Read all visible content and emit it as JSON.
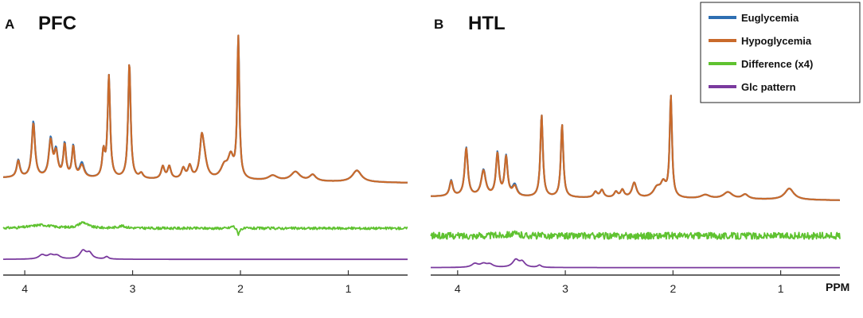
{
  "colors": {
    "euglycemia": "#2e6fb2",
    "hypoglycemia": "#c96a2b",
    "difference": "#5fc230",
    "glc": "#7a3a9e",
    "axis": "#333333"
  },
  "legend": {
    "placement": "top-right",
    "entries": [
      "Euglycemia",
      "Hypoglycemia",
      "Difference (x4)",
      "Glc pattern"
    ]
  },
  "chart_data": [
    {
      "type": "line",
      "panel_letter": "A",
      "title": "PFC",
      "xlabel": "",
      "xlim": [
        4.2,
        0.45
      ],
      "x_reversed": true,
      "xticks": [
        4,
        3,
        2,
        1
      ],
      "xtick_labels": [
        "4",
        "3",
        "2",
        "1"
      ],
      "ylim": [
        -0.5,
        4.6
      ],
      "series": [
        {
          "name": "Euglycemia",
          "peaks": [
            [
              4.06,
              0.42,
              0.018
            ],
            [
              3.92,
              1.35,
              0.018
            ],
            [
              3.76,
              0.9,
              0.02
            ],
            [
              3.71,
              0.6,
              0.02
            ],
            [
              3.63,
              0.8,
              0.015
            ],
            [
              3.55,
              0.75,
              0.015
            ],
            [
              3.47,
              0.35,
              0.025
            ],
            [
              3.27,
              0.6,
              0.015
            ],
            [
              3.22,
              2.45,
              0.014
            ],
            [
              3.03,
              2.8,
              0.014
            ],
            [
              2.92,
              0.12,
              0.02
            ],
            [
              2.72,
              0.3,
              0.018
            ],
            [
              2.66,
              0.3,
              0.018
            ],
            [
              2.53,
              0.25,
              0.02
            ],
            [
              2.47,
              0.3,
              0.02
            ],
            [
              2.36,
              0.75,
              0.02
            ],
            [
              2.34,
              0.5,
              0.03
            ],
            [
              2.15,
              0.3,
              0.04
            ],
            [
              2.09,
              0.5,
              0.03
            ],
            [
              2.02,
              3.4,
              0.012
            ],
            [
              1.7,
              0.12,
              0.05
            ],
            [
              1.49,
              0.22,
              0.05
            ],
            [
              1.33,
              0.15,
              0.035
            ],
            [
              0.92,
              0.28,
              0.05
            ]
          ]
        },
        {
          "name": "Hypoglycemia",
          "peaks": [
            [
              4.06,
              0.4,
              0.018
            ],
            [
              3.92,
              1.3,
              0.018
            ],
            [
              3.76,
              0.86,
              0.02
            ],
            [
              3.71,
              0.57,
              0.02
            ],
            [
              3.63,
              0.77,
              0.015
            ],
            [
              3.55,
              0.73,
              0.015
            ],
            [
              3.47,
              0.3,
              0.025
            ],
            [
              3.27,
              0.6,
              0.015
            ],
            [
              3.22,
              2.45,
              0.014
            ],
            [
              3.03,
              2.8,
              0.014
            ],
            [
              2.92,
              0.12,
              0.02
            ],
            [
              2.72,
              0.3,
              0.018
            ],
            [
              2.66,
              0.3,
              0.018
            ],
            [
              2.53,
              0.25,
              0.02
            ],
            [
              2.47,
              0.3,
              0.02
            ],
            [
              2.36,
              0.75,
              0.02
            ],
            [
              2.34,
              0.5,
              0.03
            ],
            [
              2.15,
              0.3,
              0.04
            ],
            [
              2.09,
              0.5,
              0.03
            ],
            [
              2.02,
              3.4,
              0.012
            ],
            [
              1.7,
              0.12,
              0.05
            ],
            [
              1.49,
              0.22,
              0.05
            ],
            [
              1.33,
              0.15,
              0.035
            ],
            [
              0.92,
              0.28,
              0.05
            ]
          ]
        },
        {
          "name": "Difference (x4)",
          "offset": -1.1,
          "noise": 0.03,
          "peaks": [
            [
              3.85,
              0.08,
              0.12
            ],
            [
              3.46,
              0.14,
              0.05
            ],
            [
              3.1,
              0.05,
              0.05
            ],
            [
              2.02,
              -0.15,
              0.012
            ],
            [
              2.07,
              0.06,
              0.02
            ]
          ]
        },
        {
          "name": "Glc pattern",
          "offset": -1.85,
          "noise": 0.0,
          "peaks": [
            [
              3.84,
              0.1,
              0.035
            ],
            [
              3.76,
              0.09,
              0.035
            ],
            [
              3.7,
              0.08,
              0.035
            ],
            [
              3.46,
              0.2,
              0.035
            ],
            [
              3.4,
              0.14,
              0.03
            ],
            [
              3.24,
              0.06,
              0.02
            ]
          ]
        }
      ]
    },
    {
      "type": "line",
      "panel_letter": "B",
      "title": "HTL",
      "xlabel": "PPM",
      "xlim": [
        4.25,
        0.45
      ],
      "x_reversed": true,
      "xticks": [
        4,
        3,
        2,
        1
      ],
      "xtick_labels": [
        "4",
        "3",
        "2",
        "1"
      ],
      "ylim": [
        -0.5,
        4.6
      ],
      "series": [
        {
          "name": "Euglycemia",
          "peaks": [
            [
              4.06,
              0.42,
              0.018
            ],
            [
              3.92,
              1.3,
              0.018
            ],
            [
              3.76,
              0.7,
              0.025
            ],
            [
              3.63,
              1.15,
              0.017
            ],
            [
              3.55,
              1.05,
              0.017
            ],
            [
              3.47,
              0.3,
              0.025
            ],
            [
              3.22,
              2.2,
              0.014
            ],
            [
              3.03,
              1.95,
              0.014
            ],
            [
              2.72,
              0.15,
              0.02
            ],
            [
              2.66,
              0.2,
              0.02
            ],
            [
              2.53,
              0.15,
              0.02
            ],
            [
              2.47,
              0.2,
              0.02
            ],
            [
              2.36,
              0.4,
              0.025
            ],
            [
              2.15,
              0.25,
              0.04
            ],
            [
              2.09,
              0.35,
              0.03
            ],
            [
              2.02,
              2.7,
              0.013
            ],
            [
              1.7,
              0.1,
              0.05
            ],
            [
              1.49,
              0.18,
              0.05
            ],
            [
              1.33,
              0.12,
              0.035
            ],
            [
              0.92,
              0.3,
              0.05
            ]
          ]
        },
        {
          "name": "Hypoglycemia",
          "peaks": [
            [
              4.06,
              0.4,
              0.018
            ],
            [
              3.92,
              1.28,
              0.018
            ],
            [
              3.76,
              0.68,
              0.025
            ],
            [
              3.63,
              1.12,
              0.017
            ],
            [
              3.55,
              1.03,
              0.017
            ],
            [
              3.47,
              0.26,
              0.025
            ],
            [
              3.22,
              2.2,
              0.014
            ],
            [
              3.03,
              1.95,
              0.014
            ],
            [
              2.72,
              0.15,
              0.02
            ],
            [
              2.66,
              0.2,
              0.02
            ],
            [
              2.53,
              0.15,
              0.02
            ],
            [
              2.47,
              0.2,
              0.02
            ],
            [
              2.36,
              0.4,
              0.025
            ],
            [
              2.15,
              0.25,
              0.04
            ],
            [
              2.09,
              0.35,
              0.03
            ],
            [
              2.02,
              2.7,
              0.013
            ],
            [
              1.7,
              0.1,
              0.05
            ],
            [
              1.49,
              0.18,
              0.05
            ],
            [
              1.33,
              0.12,
              0.035
            ],
            [
              0.92,
              0.3,
              0.05
            ]
          ]
        },
        {
          "name": "Difference (x4)",
          "offset": -0.95,
          "noise": 0.09,
          "peaks": [
            [
              3.5,
              0.05,
              0.08
            ]
          ]
        },
        {
          "name": "Glc pattern",
          "offset": -1.8,
          "noise": 0.0,
          "peaks": [
            [
              3.84,
              0.1,
              0.035
            ],
            [
              3.76,
              0.09,
              0.035
            ],
            [
              3.7,
              0.08,
              0.035
            ],
            [
              3.46,
              0.2,
              0.035
            ],
            [
              3.4,
              0.14,
              0.03
            ],
            [
              3.24,
              0.06,
              0.02
            ]
          ]
        }
      ]
    }
  ]
}
